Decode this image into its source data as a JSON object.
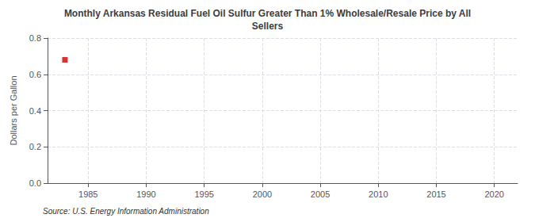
{
  "chart_data": {
    "type": "scatter",
    "title": "Monthly Arkansas Residual Fuel Oil Sulfur Greater Than 1% Wholesale/Resale Price by All\nSellers",
    "ylabel": "Dollars per Gallon",
    "annotation": "Source: U.S. Energy Information Administration",
    "x": [
      1983.0
    ],
    "values": [
      0.68
    ],
    "xlim": [
      1981.5,
      2022
    ],
    "ylim": [
      0.0,
      0.8
    ],
    "xticks": [
      1985,
      1990,
      1995,
      2000,
      2005,
      2010,
      2015,
      2020
    ],
    "yticks": [
      {
        "value": 0.0,
        "label": "0.0"
      },
      0.2,
      0.4,
      0.6,
      0.8
    ],
    "grid": true,
    "color": "#cc0000",
    "marker": "square"
  }
}
